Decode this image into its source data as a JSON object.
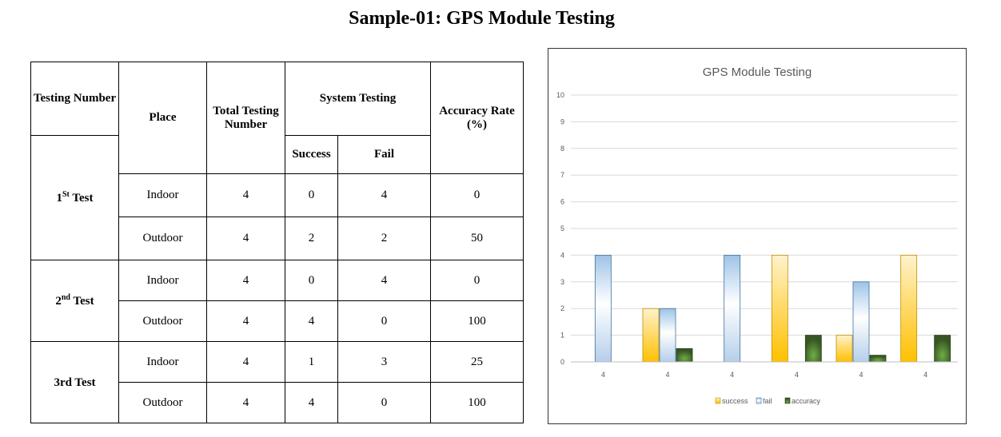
{
  "page_title": "Sample-01: GPS Module Testing",
  "table": {
    "headers": {
      "testing_number": "Testing Number",
      "place": "Place",
      "total_testing_number": "Total Testing Number",
      "system_testing": "System Testing",
      "success": "Success",
      "fail": "Fail",
      "accuracy_rate": "Accuracy Rate (%)"
    },
    "groups": [
      {
        "label_num": "1",
        "label_sup": "St",
        "label_rest": " Test",
        "rows": [
          {
            "place": "Indoor",
            "total": "4",
            "success": "0",
            "fail": "4",
            "accuracy": "0"
          },
          {
            "place": "Outdoor",
            "total": "4",
            "success": "2",
            "fail": "2",
            "accuracy": "50"
          }
        ]
      },
      {
        "label_num": "2",
        "label_sup": "nd",
        "label_rest": " Test",
        "rows": [
          {
            "place": "Indoor",
            "total": "4",
            "success": "0",
            "fail": "4",
            "accuracy": "0"
          },
          {
            "place": "Outdoor",
            "total": "4",
            "success": "4",
            "fail": "0",
            "accuracy": "100"
          }
        ]
      },
      {
        "label_num": "3rd Test",
        "label_sup": "",
        "label_rest": "",
        "rows": [
          {
            "place": "Indoor",
            "total": "4",
            "success": "1",
            "fail": "3",
            "accuracy": "25"
          },
          {
            "place": "Outdoor",
            "total": "4",
            "success": "4",
            "fail": "0",
            "accuracy": "100"
          }
        ]
      }
    ]
  },
  "chart_data": {
    "type": "bar",
    "title": "GPS Module Testing",
    "categories": [
      "4",
      "4",
      "4",
      "4",
      "4",
      "4"
    ],
    "series": [
      {
        "name": "success",
        "values": [
          0,
          2,
          0,
          4,
          1,
          4
        ],
        "color": "#FFC000"
      },
      {
        "name": "fail",
        "values": [
          4,
          2,
          4,
          0,
          3,
          0
        ],
        "color": "#9DC3E6"
      },
      {
        "name": "accuracy",
        "values": [
          0,
          0.5,
          0,
          1,
          0.25,
          1
        ],
        "color": "#375623"
      }
    ],
    "ylim": [
      0,
      10
    ],
    "yticks": [
      "0",
      "1",
      "2",
      "3",
      "4",
      "5",
      "6",
      "7",
      "8",
      "9",
      "10"
    ],
    "grid": true,
    "legend_position": "bottom"
  }
}
